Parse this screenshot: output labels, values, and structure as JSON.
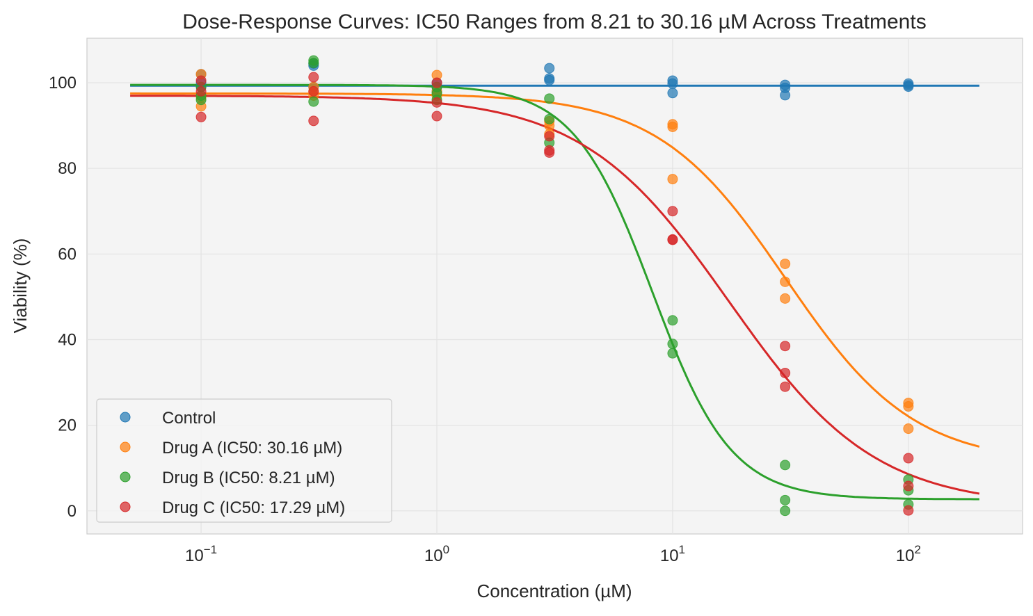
{
  "chart_data": {
    "type": "scatter",
    "title": "Dose-Response Curves: IC50 Ranges from 8.21 to 30.16 µM Across Treatments",
    "xlabel": "Concentration (µM)",
    "ylabel": "Viability (%)",
    "xscale": "log",
    "xlim": [
      0.0328,
      305
    ],
    "ylim": [
      -5.4,
      110.4
    ],
    "xticks": [
      {
        "base": "10",
        "exp": "−1",
        "value": 0.1
      },
      {
        "base": "10",
        "exp": "0",
        "value": 1
      },
      {
        "base": "10",
        "exp": "1",
        "value": 10
      },
      {
        "base": "10",
        "exp": "2",
        "value": 100
      }
    ],
    "yticks": [
      0,
      20,
      40,
      60,
      80,
      100
    ],
    "grid": true,
    "legend_placement": "lower-left",
    "x": [
      0.1,
      0.3,
      1,
      3,
      10,
      30,
      100
    ],
    "curve_range": [
      0.05,
      200
    ],
    "series": [
      {
        "name": "Control",
        "color": "#1f77b4",
        "points": [
          [
            102,
            100,
            99
          ],
          [
            104,
            104.5,
            99
          ],
          [
            99,
            98,
            100
          ],
          [
            103.4,
            101,
            100.6
          ],
          [
            100.5,
            99.8,
            97.6
          ],
          [
            99.5,
            98.8,
            97.1
          ],
          [
            99.8,
            99.4,
            99.1
          ]
        ],
        "fit": {
          "top": 99.3,
          "bottom": 99.3,
          "ic50": 1,
          "hill": 1
        }
      },
      {
        "name": "Drug A (IC50: 30.16 µM)",
        "color": "#ff7f0e",
        "points": [
          [
            102,
            94.5,
            96.5
          ],
          [
            97,
            98,
            99
          ],
          [
            101.8,
            97,
            98
          ],
          [
            90,
            88,
            91
          ],
          [
            90.3,
            89.7,
            77.5
          ],
          [
            57.7,
            53.5,
            49.6
          ],
          [
            25.2,
            24.4,
            19.2
          ]
        ],
        "fit": {
          "top": 97.5,
          "bottom": 11,
          "ic50": 30.16,
          "hill": 1.6
        }
      },
      {
        "name": "Drug B (IC50: 8.21 µM)",
        "color": "#2ca02c",
        "points": [
          [
            96,
            97,
            99
          ],
          [
            105.2,
            104.6,
            95.6
          ],
          [
            99,
            97.5,
            96
          ],
          [
            96.3,
            91.5,
            86
          ],
          [
            44.5,
            39,
            36.8
          ],
          [
            10.7,
            2.5,
            0
          ],
          [
            7.3,
            4.8,
            1.5
          ]
        ],
        "fit": {
          "top": 99.5,
          "bottom": 2.7,
          "ic50": 8.21,
          "hill": 2.6
        }
      },
      {
        "name": "Drug C (IC50: 17.29 µM)",
        "color": "#d62728",
        "points": [
          [
            100.5,
            98,
            92
          ],
          [
            101.3,
            98,
            91.1
          ],
          [
            100,
            95.4,
            92.2
          ],
          [
            84.2,
            83.7,
            87.5
          ],
          [
            70,
            63.3,
            63.4
          ],
          [
            38.5,
            32.2,
            29
          ],
          [
            12.3,
            5.8,
            0.1
          ]
        ],
        "fit": {
          "top": 97,
          "bottom": 1,
          "ic50": 17.29,
          "hill": 1.4
        }
      }
    ]
  }
}
